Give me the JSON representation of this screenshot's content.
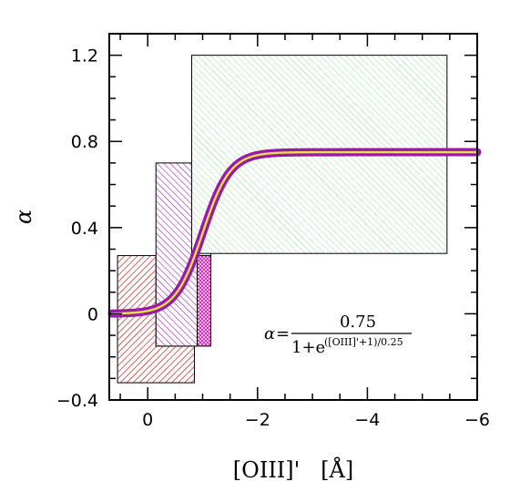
{
  "chart_data": {
    "type": "line",
    "title": "",
    "xlabel": "[OIII]'   [Å]",
    "ylabel": "α",
    "xlim": [
      0.7,
      -6.0
    ],
    "ylim": [
      -0.4,
      1.3
    ],
    "x_ticks": [
      0,
      -2,
      -4,
      -6
    ],
    "x_tick_labels": [
      "0",
      "−2",
      "−4",
      "−6"
    ],
    "y_ticks": [
      -0.4,
      0,
      0.4,
      0.8,
      1.2
    ],
    "y_tick_labels": [
      "−0.4",
      "0",
      "0.4",
      "0.8",
      "1.2"
    ],
    "grid": false,
    "series": [
      {
        "function": "sigmoid",
        "amplitude": 0.75,
        "center": -1.0,
        "scale": 0.25,
        "x_range": [
          0.65,
          -6.0
        ],
        "colors": {
          "outer": "#9a19a8",
          "inner": "#e8e04a"
        }
      }
    ],
    "regions": [
      {
        "x": [
          0.55,
          -0.85
        ],
        "y": [
          -0.32,
          0.27
        ],
        "color": "#cc1f1f",
        "fill": "diagonal-hatch"
      },
      {
        "x": [
          -0.15,
          -1.15
        ],
        "y": [
          -0.15,
          0.27
        ],
        "color": "#ee1fb5",
        "fill": "cross-hatch"
      },
      {
        "x": [
          -0.15,
          -0.9
        ],
        "y": [
          -0.15,
          0.7
        ],
        "color": "#a21fc7",
        "fill": "diagonal-hatch"
      },
      {
        "x": [
          -0.9,
          -1.15
        ],
        "y": [
          0.27,
          0.7
        ],
        "color": "#a21fc7",
        "fill": "dots"
      },
      {
        "x": [
          -0.8,
          -5.45
        ],
        "y": [
          0.28,
          1.2
        ],
        "color": "#6bd66b",
        "fill": "diagonal-hatch"
      }
    ],
    "annotation": {
      "lhs": "α",
      "equals": "=",
      "numerator": "0.75",
      "denominator_prefix": "1+e",
      "exponent": "([OIII]'+1)/0.25"
    }
  }
}
